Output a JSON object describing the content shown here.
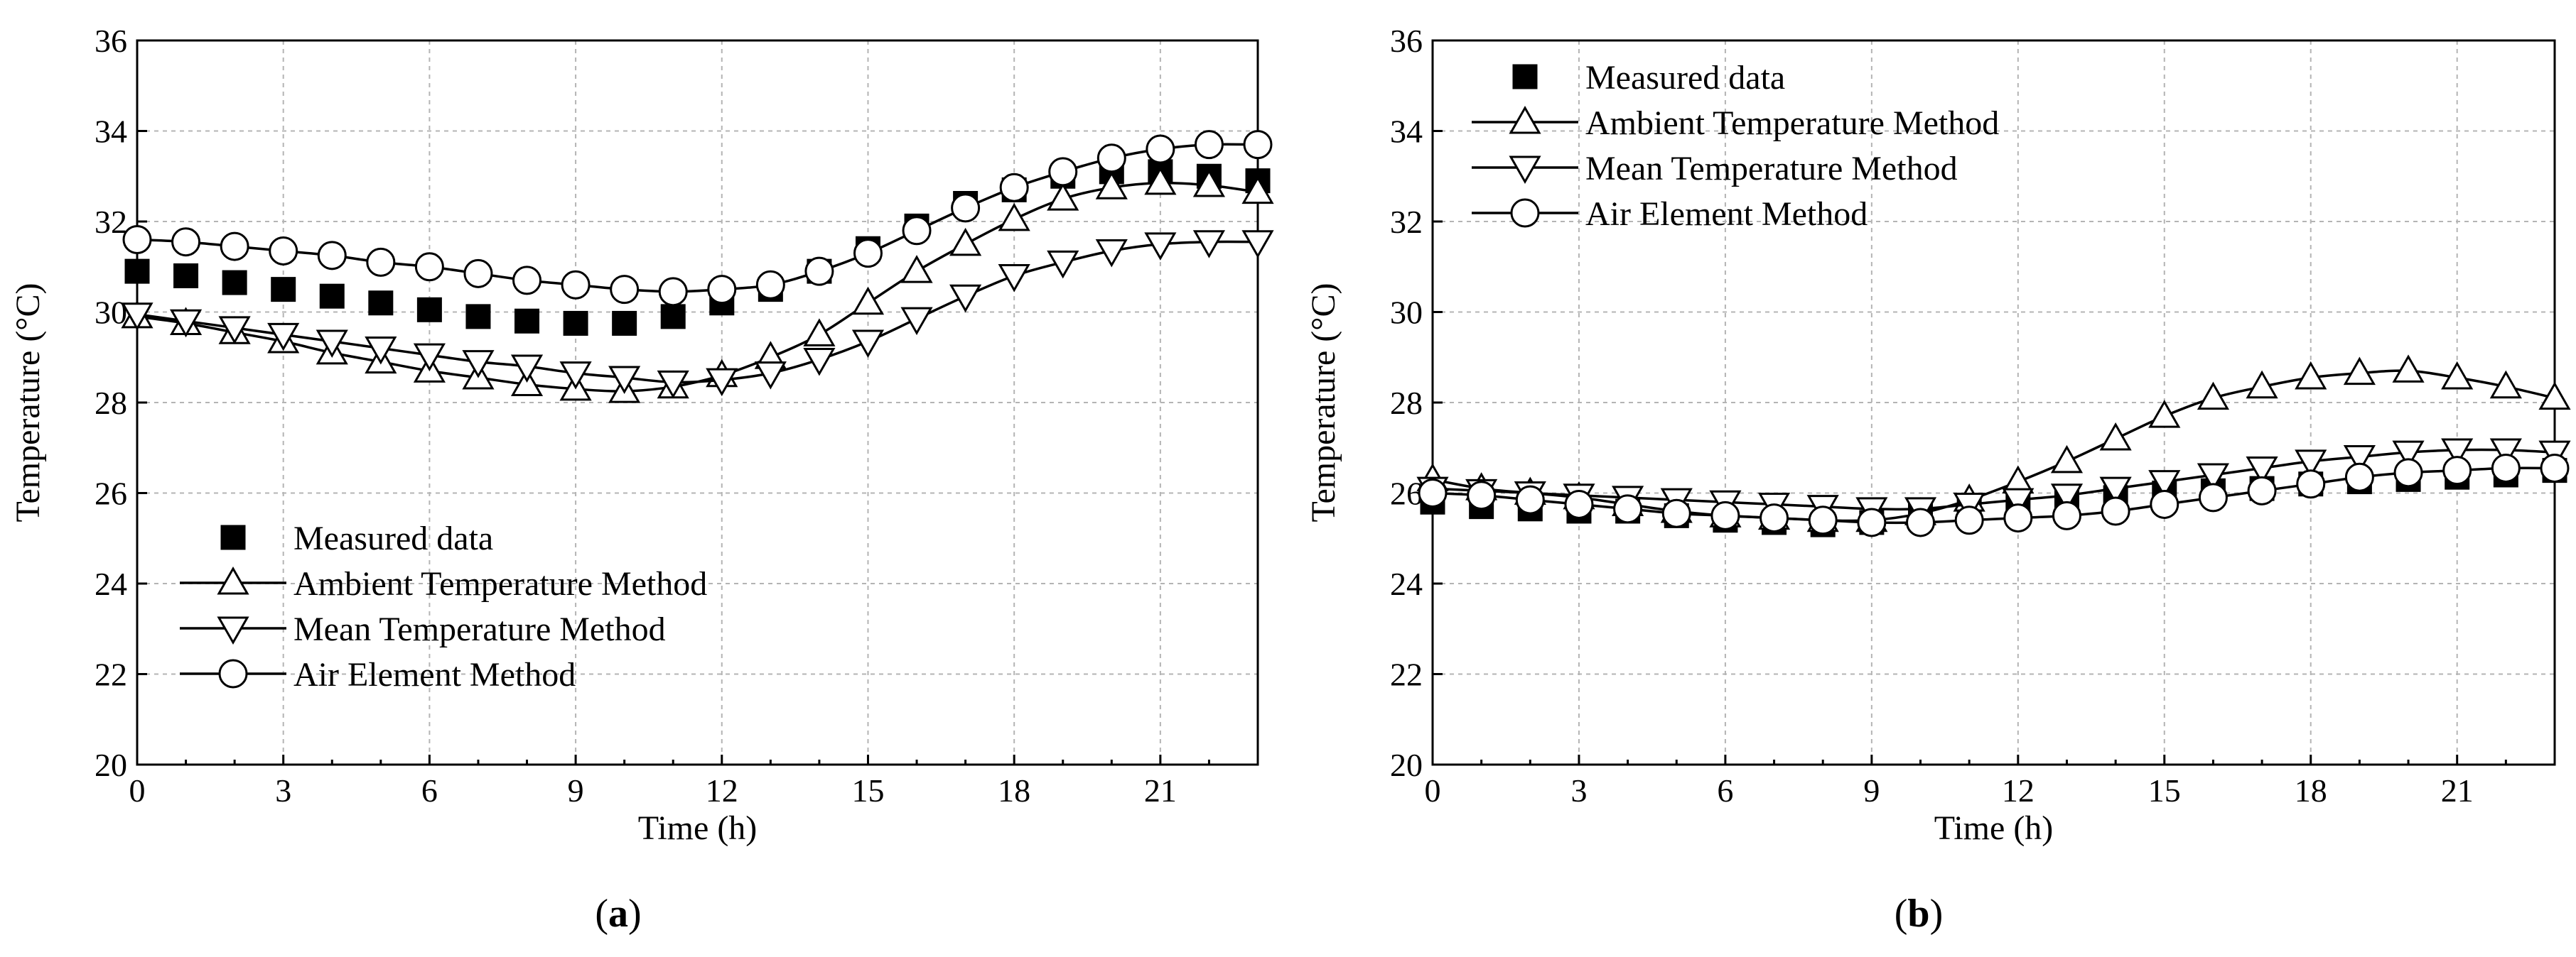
{
  "chart_data": [
    {
      "type": "line",
      "panel_label": "(a)",
      "panel_letter": "a",
      "title": "",
      "xlabel": "Time (h)",
      "ylabel": "Temperature (°C)",
      "xlim": [
        0,
        23
      ],
      "ylim": [
        20,
        36
      ],
      "xticks": [
        0,
        3,
        6,
        9,
        12,
        15,
        18,
        21
      ],
      "yticks": [
        20,
        22,
        24,
        26,
        28,
        30,
        32,
        34,
        36
      ],
      "grid": true,
      "legend_position": "lower-left",
      "x": [
        0,
        1,
        2,
        3,
        4,
        5,
        6,
        7,
        8,
        9,
        10,
        11,
        12,
        13,
        14,
        15,
        16,
        17,
        18,
        19,
        20,
        21,
        22,
        23
      ],
      "series": [
        {
          "name": "Measured data",
          "marker": "square",
          "line": false,
          "values": [
            30.9,
            30.8,
            30.65,
            30.5,
            30.35,
            30.2,
            30.05,
            29.9,
            29.8,
            29.75,
            29.75,
            29.9,
            30.2,
            30.5,
            30.9,
            31.4,
            31.9,
            32.4,
            32.7,
            33.0,
            33.1,
            33.1,
            33.0,
            32.9
          ]
        },
        {
          "name": "Ambient Temperature Method",
          "marker": "triangle-up",
          "line": true,
          "values": [
            29.9,
            29.75,
            29.55,
            29.35,
            29.1,
            28.9,
            28.7,
            28.55,
            28.4,
            28.3,
            28.25,
            28.35,
            28.6,
            29.0,
            29.5,
            30.2,
            30.9,
            31.5,
            32.05,
            32.5,
            32.75,
            32.85,
            32.8,
            32.65
          ]
        },
        {
          "name": "Mean Temperature Method",
          "marker": "triangle-down",
          "line": true,
          "values": [
            29.95,
            29.8,
            29.65,
            29.5,
            29.35,
            29.2,
            29.05,
            28.9,
            28.8,
            28.65,
            28.55,
            28.45,
            28.5,
            28.65,
            28.95,
            29.35,
            29.85,
            30.35,
            30.8,
            31.1,
            31.35,
            31.5,
            31.55,
            31.55
          ]
        },
        {
          "name": "Air Element Method",
          "marker": "circle",
          "line": true,
          "values": [
            31.6,
            31.55,
            31.45,
            31.35,
            31.25,
            31.1,
            31.0,
            30.85,
            30.7,
            30.6,
            30.5,
            30.45,
            30.5,
            30.6,
            30.9,
            31.3,
            31.8,
            32.3,
            32.75,
            33.1,
            33.4,
            33.6,
            33.7,
            33.7
          ]
        }
      ]
    },
    {
      "type": "line",
      "panel_label": "(b)",
      "panel_letter": "b",
      "title": "",
      "xlabel": "Time (h)",
      "ylabel": "Temperature (°C)",
      "xlim": [
        0,
        23
      ],
      "ylim": [
        20,
        36
      ],
      "xticks": [
        0,
        3,
        6,
        9,
        12,
        15,
        18,
        21
      ],
      "yticks": [
        20,
        22,
        24,
        26,
        28,
        30,
        32,
        34,
        36
      ],
      "grid": true,
      "legend_position": "upper-left",
      "x": [
        0,
        1,
        2,
        3,
        4,
        5,
        6,
        7,
        8,
        9,
        10,
        11,
        12,
        13,
        14,
        15,
        16,
        17,
        18,
        19,
        20,
        21,
        22,
        23
      ],
      "series": [
        {
          "name": "Measured data",
          "marker": "square",
          "line": false,
          "values": [
            25.8,
            25.7,
            25.65,
            25.6,
            25.6,
            25.5,
            25.4,
            25.35,
            25.3,
            25.35,
            25.5,
            25.6,
            25.7,
            25.8,
            25.9,
            26.0,
            26.05,
            26.1,
            26.2,
            26.25,
            26.3,
            26.35,
            26.4,
            26.5
          ]
        },
        {
          "name": "Ambient Temperature Method",
          "marker": "triangle-up",
          "line": true,
          "values": [
            26.3,
            26.1,
            26.0,
            25.9,
            25.75,
            25.6,
            25.5,
            25.45,
            25.4,
            25.4,
            25.55,
            25.85,
            26.25,
            26.7,
            27.2,
            27.7,
            28.1,
            28.35,
            28.55,
            28.65,
            28.7,
            28.55,
            28.35,
            28.1
          ]
        },
        {
          "name": "Mean Temperature Method",
          "marker": "triangle-down",
          "line": true,
          "values": [
            26.1,
            26.05,
            26.0,
            25.95,
            25.9,
            25.85,
            25.8,
            25.75,
            25.7,
            25.65,
            25.65,
            25.75,
            25.85,
            25.95,
            26.1,
            26.25,
            26.4,
            26.55,
            26.7,
            26.8,
            26.9,
            26.95,
            26.95,
            26.9
          ]
        },
        {
          "name": "Air Element Method",
          "marker": "circle",
          "line": true,
          "values": [
            26.0,
            25.95,
            25.85,
            25.75,
            25.65,
            25.55,
            25.5,
            25.45,
            25.4,
            25.35,
            25.35,
            25.4,
            25.45,
            25.5,
            25.6,
            25.75,
            25.9,
            26.05,
            26.2,
            26.35,
            26.45,
            26.5,
            26.55,
            26.55
          ]
        }
      ]
    }
  ]
}
